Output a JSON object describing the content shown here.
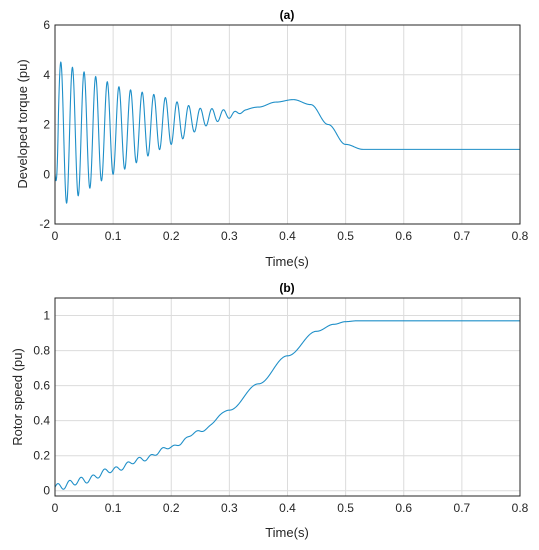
{
  "chart_data": [
    {
      "type": "line",
      "title": "(a)",
      "xlabel": "Time(s)",
      "ylabel": "Developed torque (pu)",
      "xlim": [
        0,
        0.8
      ],
      "ylim": [
        -2,
        6
      ],
      "xticks": [
        "0",
        "0.1",
        "0.2",
        "0.3",
        "0.4",
        "0.5",
        "0.6",
        "0.7",
        "0.8"
      ],
      "yticks": [
        "-2",
        "0",
        "2",
        "4",
        "6"
      ],
      "grid": true,
      "color": "#1f8fc8",
      "series": [
        {
          "description": "oscillatory start-up torque (~50 Hz, decaying amplitude) settling to steady state",
          "envelope_t": [
            0,
            0.01,
            0.1,
            0.2,
            0.25,
            0.3,
            0.33
          ],
          "envelope_amplitude": [
            2.9,
            2.9,
            1.8,
            0.9,
            0.4,
            0.15,
            0
          ],
          "mean_t": [
            0,
            0.1,
            0.2,
            0.3,
            0.35,
            0.38,
            0.41,
            0.44,
            0.47,
            0.5,
            0.53,
            0.8
          ],
          "mean_values": [
            1.6,
            1.8,
            2.1,
            2.4,
            2.7,
            2.9,
            3.0,
            2.8,
            2.0,
            1.2,
            1.0,
            1.0
          ],
          "points": [
            [
              0,
              0
            ],
            [
              0.01,
              4.5
            ],
            [
              0.02,
              -1.2
            ],
            [
              0.1,
              3.6
            ],
            [
              0.2,
              3.0
            ],
            [
              0.3,
              2.5
            ],
            [
              0.41,
              3.0
            ],
            [
              0.5,
              1.2
            ],
            [
              0.53,
              1.0
            ],
            [
              0.8,
              1.0
            ]
          ]
        }
      ]
    },
    {
      "type": "line",
      "title": "(b)",
      "xlabel": "Time(s)",
      "ylabel": "Rotor speed (pu)",
      "xlim": [
        0,
        0.8
      ],
      "ylim": [
        -0.03,
        1.1
      ],
      "xticks": [
        "0",
        "0.1",
        "0.2",
        "0.3",
        "0.4",
        "0.5",
        "0.6",
        "0.7",
        "0.8"
      ],
      "yticks": [
        "0",
        "0.2",
        "0.4",
        "0.6",
        "0.8",
        "1"
      ],
      "grid": true,
      "color": "#1f8fc8",
      "series": [
        {
          "description": "rotor speed rising from 0 with small ripple, saturating near 0.97",
          "t": [
            0,
            0.05,
            0.1,
            0.15,
            0.2,
            0.25,
            0.3,
            0.35,
            0.4,
            0.45,
            0.48,
            0.5,
            0.52,
            0.8
          ],
          "values": [
            0.02,
            0.06,
            0.12,
            0.18,
            0.25,
            0.34,
            0.46,
            0.61,
            0.77,
            0.91,
            0.95,
            0.965,
            0.97,
            0.97
          ],
          "ripple_amplitude_t": [
            0,
            0.1,
            0.2,
            0.25,
            0.3
          ],
          "ripple_amplitude": [
            0.02,
            0.015,
            0.008,
            0.004,
            0
          ]
        }
      ]
    }
  ]
}
